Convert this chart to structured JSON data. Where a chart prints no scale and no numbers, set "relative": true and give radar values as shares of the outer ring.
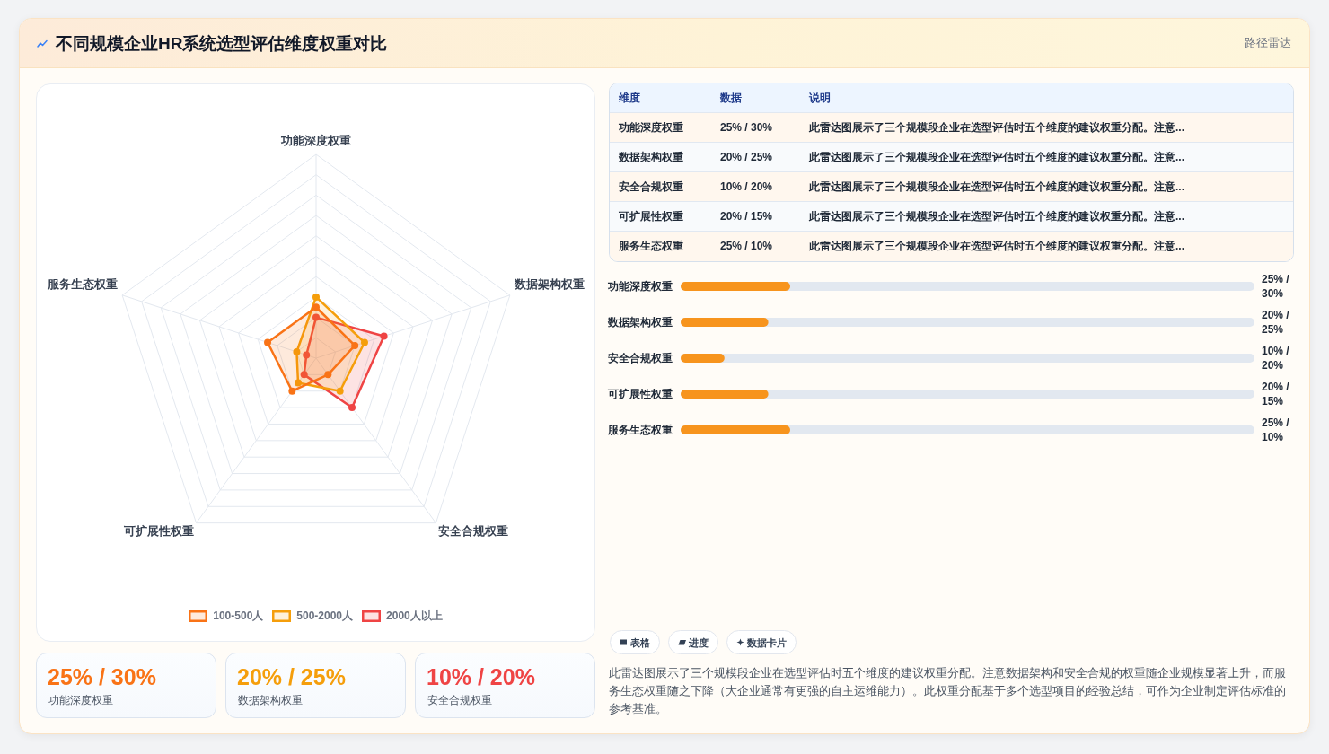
{
  "chart_data": [
    {
      "type": "other",
      "title": "不同规模企业HR系统选型评估维度权重对比",
      "subtitle": "路径雷达"
    },
    {
      "type": "radar",
      "categories": [
        "功能深度权重",
        "数据架构权重",
        "安全合规权重",
        "可扩展性权重",
        "服务生态权重"
      ],
      "relative": true,
      "grid": true,
      "legend": "bottom",
      "marker": "circle",
      "series": [
        {
          "name": "100-500人",
          "color": "#f97316",
          "values": [
            0.25,
            0.2,
            0.1,
            0.2,
            0.25
          ]
        },
        {
          "name": "500-2000人",
          "color": "#f59e0b",
          "values": [
            0.3,
            0.25,
            0.2,
            0.15,
            0.1
          ]
        },
        {
          "name": "2000人以上",
          "color": "#ef4444",
          "values": [
            0.2,
            0.35,
            0.3,
            0.1,
            0.05
          ]
        }
      ]
    },
    {
      "type": "other",
      "annotations": [
        "维度",
        "数据",
        "说明",
        "功能深度权重",
        "25% / 30%",
        "此雷达图展示了三个规模段企业在选型评估时五个维度的建议权重分配。注意...",
        "数据架构权重",
        "20% / 25%",
        "此雷达图展示了三个规模段企业在选型评估时五个维度的建议权重分配。注意...",
        "安全合规权重",
        "10% / 20%",
        "此雷达图展示了三个规模段企业在选型评估时五个维度的建议权重分配。注意...",
        "可扩展性权重",
        "20% / 15%",
        "此雷达图展示了三个规模段企业在选型评估时五个维度的建议权重分配。注意...",
        "服务生态权重",
        "25% / 10%",
        "此雷达图展示了三个规模段企业在选型评估时五个维度的建议权重分配。注意..."
      ]
    },
    {
      "type": "bar",
      "orientation": "horizontal",
      "categories": [
        "功能深度权重",
        "数据架构权重",
        "安全合规权重",
        "可扩展性权重",
        "服务生态权重"
      ],
      "values": [
        25,
        20,
        10,
        20,
        25
      ],
      "value_labels": [
        "25% / 30%",
        "20% / 25%",
        "10% / 20%",
        "20% / 15%",
        "25% / 10%"
      ],
      "color": "#f7941d"
    },
    {
      "type": "other",
      "annotations": [
        "25% / 30%",
        "功能深度权重",
        "20% / 25%",
        "数据架构权重",
        "10% / 20%",
        "安全合规权重"
      ]
    },
    {
      "type": "other",
      "annotations": [
        "表格",
        "进度",
        "数据卡片",
        "此雷达图展示了三个规模段企业在选型评估时五个维度的建议权重分配。注意数据架构和安全合规的权重随企业规模显著上升，而服务生态权重随之下降（大企业通常有更强的自主运维能力）。此权重分配基于多个选型项目的经验总结，可作为企业制定评估标准的参考基准。"
      ]
    }
  ]
}
